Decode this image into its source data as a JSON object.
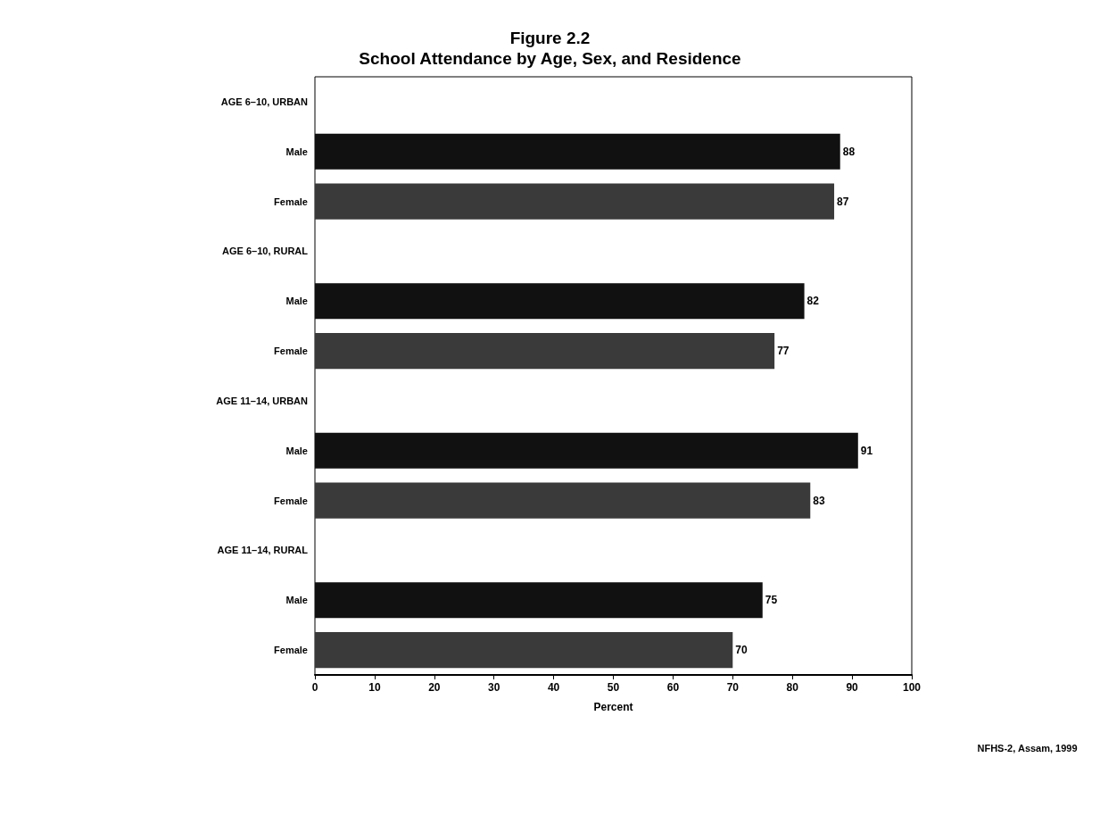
{
  "chart_data": {
    "type": "bar",
    "orientation": "horizontal",
    "title": "Figure 2.2",
    "subtitle": "School Attendance by Age, Sex, and Residence",
    "categories": [
      "AGE 6–10, URBAN",
      "Male",
      "Female",
      "AGE 6–10, RURAL",
      "Male",
      "Female",
      "AGE 11–14, URBAN",
      "Male",
      "Female",
      "AGE 11–14, RURAL",
      "Male",
      "Female"
    ],
    "values": [
      null,
      88,
      87,
      null,
      82,
      77,
      null,
      91,
      83,
      null,
      75,
      70
    ],
    "colors": [
      null,
      "#111111",
      "#3a3a3a",
      null,
      "#111111",
      "#3a3a3a",
      null,
      "#111111",
      "#3a3a3a",
      null,
      "#111111",
      "#3a3a3a"
    ],
    "xlim": [
      0,
      100
    ],
    "xticks": [
      0,
      10,
      20,
      30,
      40,
      50,
      60,
      70,
      80,
      90,
      100
    ],
    "xlabel": "Percent",
    "data_labels": true,
    "grid": false,
    "annotations": [
      "NFHS-2, Assam, 1999"
    ]
  }
}
